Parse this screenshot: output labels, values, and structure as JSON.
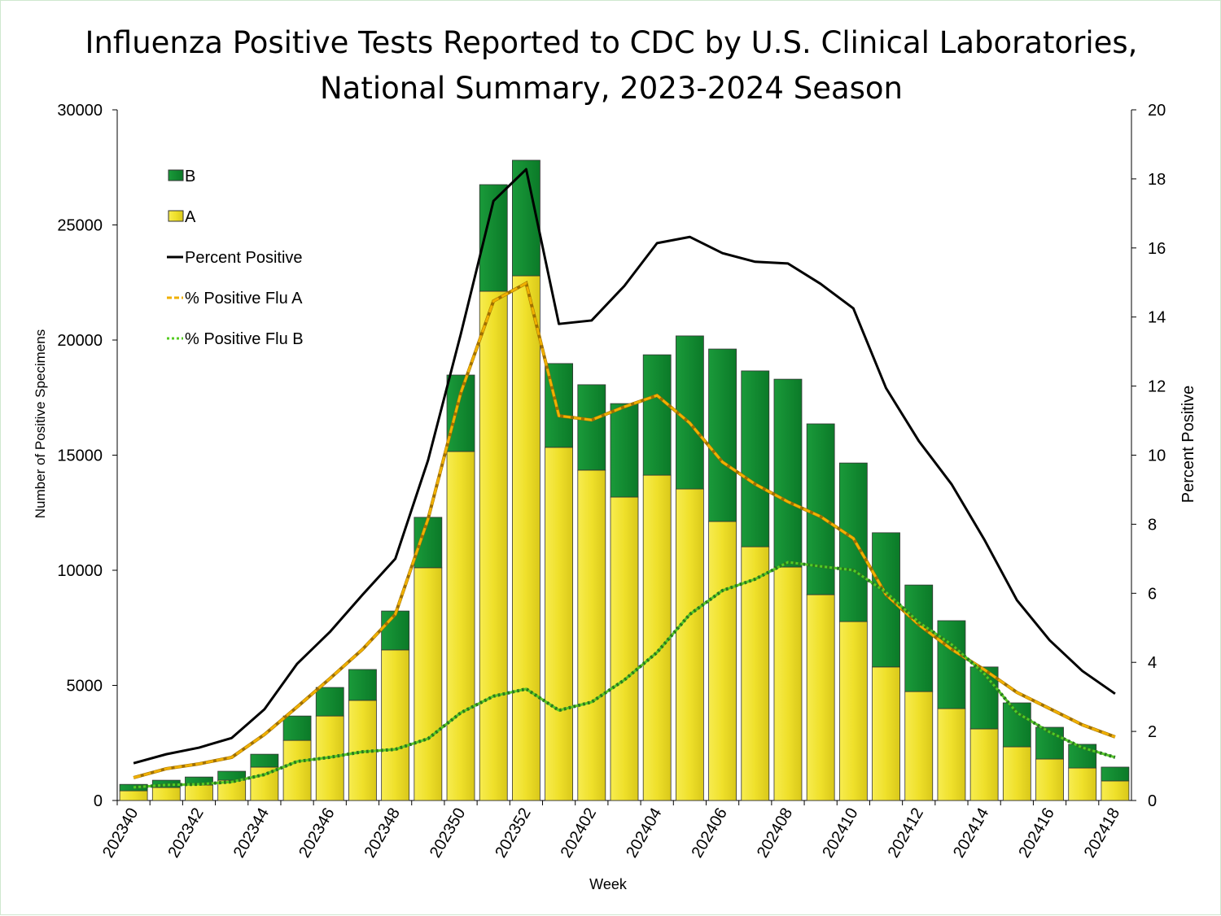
{
  "chart_data": {
    "type": "bar",
    "stacked": true,
    "title_line1": "Influenza Positive Tests Reported to CDC by U.S. Clinical Laboratories,",
    "title_line2": "National Summary, 2023-2024 Season",
    "xlabel": "Week",
    "ylabel": "Number of Positive Specimens",
    "y2label": "Percent Positive",
    "ylim": [
      0,
      30000
    ],
    "y2lim": [
      0,
      20
    ],
    "yticks": [
      "0",
      "5000",
      "10000",
      "15000",
      "20000",
      "25000",
      "30000"
    ],
    "y2ticks": [
      "0",
      "2",
      "4",
      "6",
      "8",
      "10",
      "12",
      "14",
      "16",
      "18",
      "20"
    ],
    "legend_position": "top-left",
    "categories": [
      "202340",
      "202341",
      "202342",
      "202343",
      "202344",
      "202345",
      "202346",
      "202347",
      "202348",
      "202349",
      "202350",
      "202351",
      "202352",
      "202401",
      "202402",
      "202403",
      "202404",
      "202405",
      "202406",
      "202407",
      "202408",
      "202409",
      "202410",
      "202411",
      "202412",
      "202413",
      "202414",
      "202415",
      "202416",
      "202417",
      "202418"
    ],
    "xtick_labels": [
      "202340",
      "202342",
      "202344",
      "202346",
      "202348",
      "202350",
      "202352",
      "202402",
      "202404",
      "202406",
      "202408",
      "202410",
      "202412",
      "202414",
      "202416",
      "202418"
    ],
    "series": [
      {
        "name": "B",
        "kind": "bar",
        "color": "#108a30",
        "values": [
          280,
          315,
          350,
          390,
          560,
          1060,
          1240,
          1340,
          1690,
          2190,
          3320,
          4630,
          5020,
          3640,
          3710,
          4060,
          5230,
          6650,
          7490,
          7640,
          8160,
          7420,
          6890,
          5830,
          4630,
          3820,
          2690,
          1910,
          1380,
          1030,
          600
        ]
      },
      {
        "name": "A",
        "kind": "bar",
        "color": "#f0e030",
        "values": [
          420,
          565,
          670,
          880,
          1450,
          2610,
          3670,
          4350,
          6540,
          10110,
          15160,
          22120,
          22790,
          15340,
          14350,
          13180,
          14130,
          13530,
          12120,
          11020,
          10140,
          8940,
          7770,
          5800,
          4730,
          3990,
          3110,
          2330,
          1800,
          1410,
          850
        ]
      },
      {
        "name": "Percent Positive",
        "kind": "line",
        "axis": "right",
        "color": "#000000",
        "values": [
          1.08,
          1.34,
          1.53,
          1.81,
          2.64,
          3.96,
          4.88,
          5.96,
          7.0,
          9.85,
          13.5,
          17.36,
          18.28,
          13.8,
          13.9,
          14.9,
          16.14,
          16.32,
          15.85,
          15.6,
          15.55,
          14.96,
          14.25,
          11.94,
          10.41,
          9.16,
          7.56,
          5.8,
          4.64,
          3.75,
          3.09
        ]
      },
      {
        "name": "% Positive Flu A",
        "kind": "line",
        "axis": "right",
        "style": "dashed",
        "color": "#f0b000",
        "values": [
          0.66,
          0.92,
          1.06,
          1.25,
          1.91,
          2.71,
          3.53,
          4.38,
          5.39,
          8.15,
          11.8,
          14.46,
          14.98,
          11.14,
          11.02,
          11.4,
          11.73,
          10.93,
          9.8,
          9.16,
          8.65,
          8.22,
          7.59,
          5.96,
          5.09,
          4.38,
          3.79,
          3.13,
          2.66,
          2.19,
          1.84
        ]
      },
      {
        "name": "% Positive Flu B",
        "kind": "line",
        "axis": "right",
        "style": "dotted",
        "color": "#55cc22",
        "values": [
          0.38,
          0.45,
          0.47,
          0.54,
          0.75,
          1.13,
          1.25,
          1.41,
          1.48,
          1.79,
          2.54,
          3.02,
          3.23,
          2.61,
          2.85,
          3.49,
          4.29,
          5.39,
          6.08,
          6.41,
          6.9,
          6.78,
          6.67,
          6.03,
          5.16,
          4.52,
          3.67,
          2.54,
          1.98,
          1.53,
          1.25
        ]
      }
    ]
  }
}
